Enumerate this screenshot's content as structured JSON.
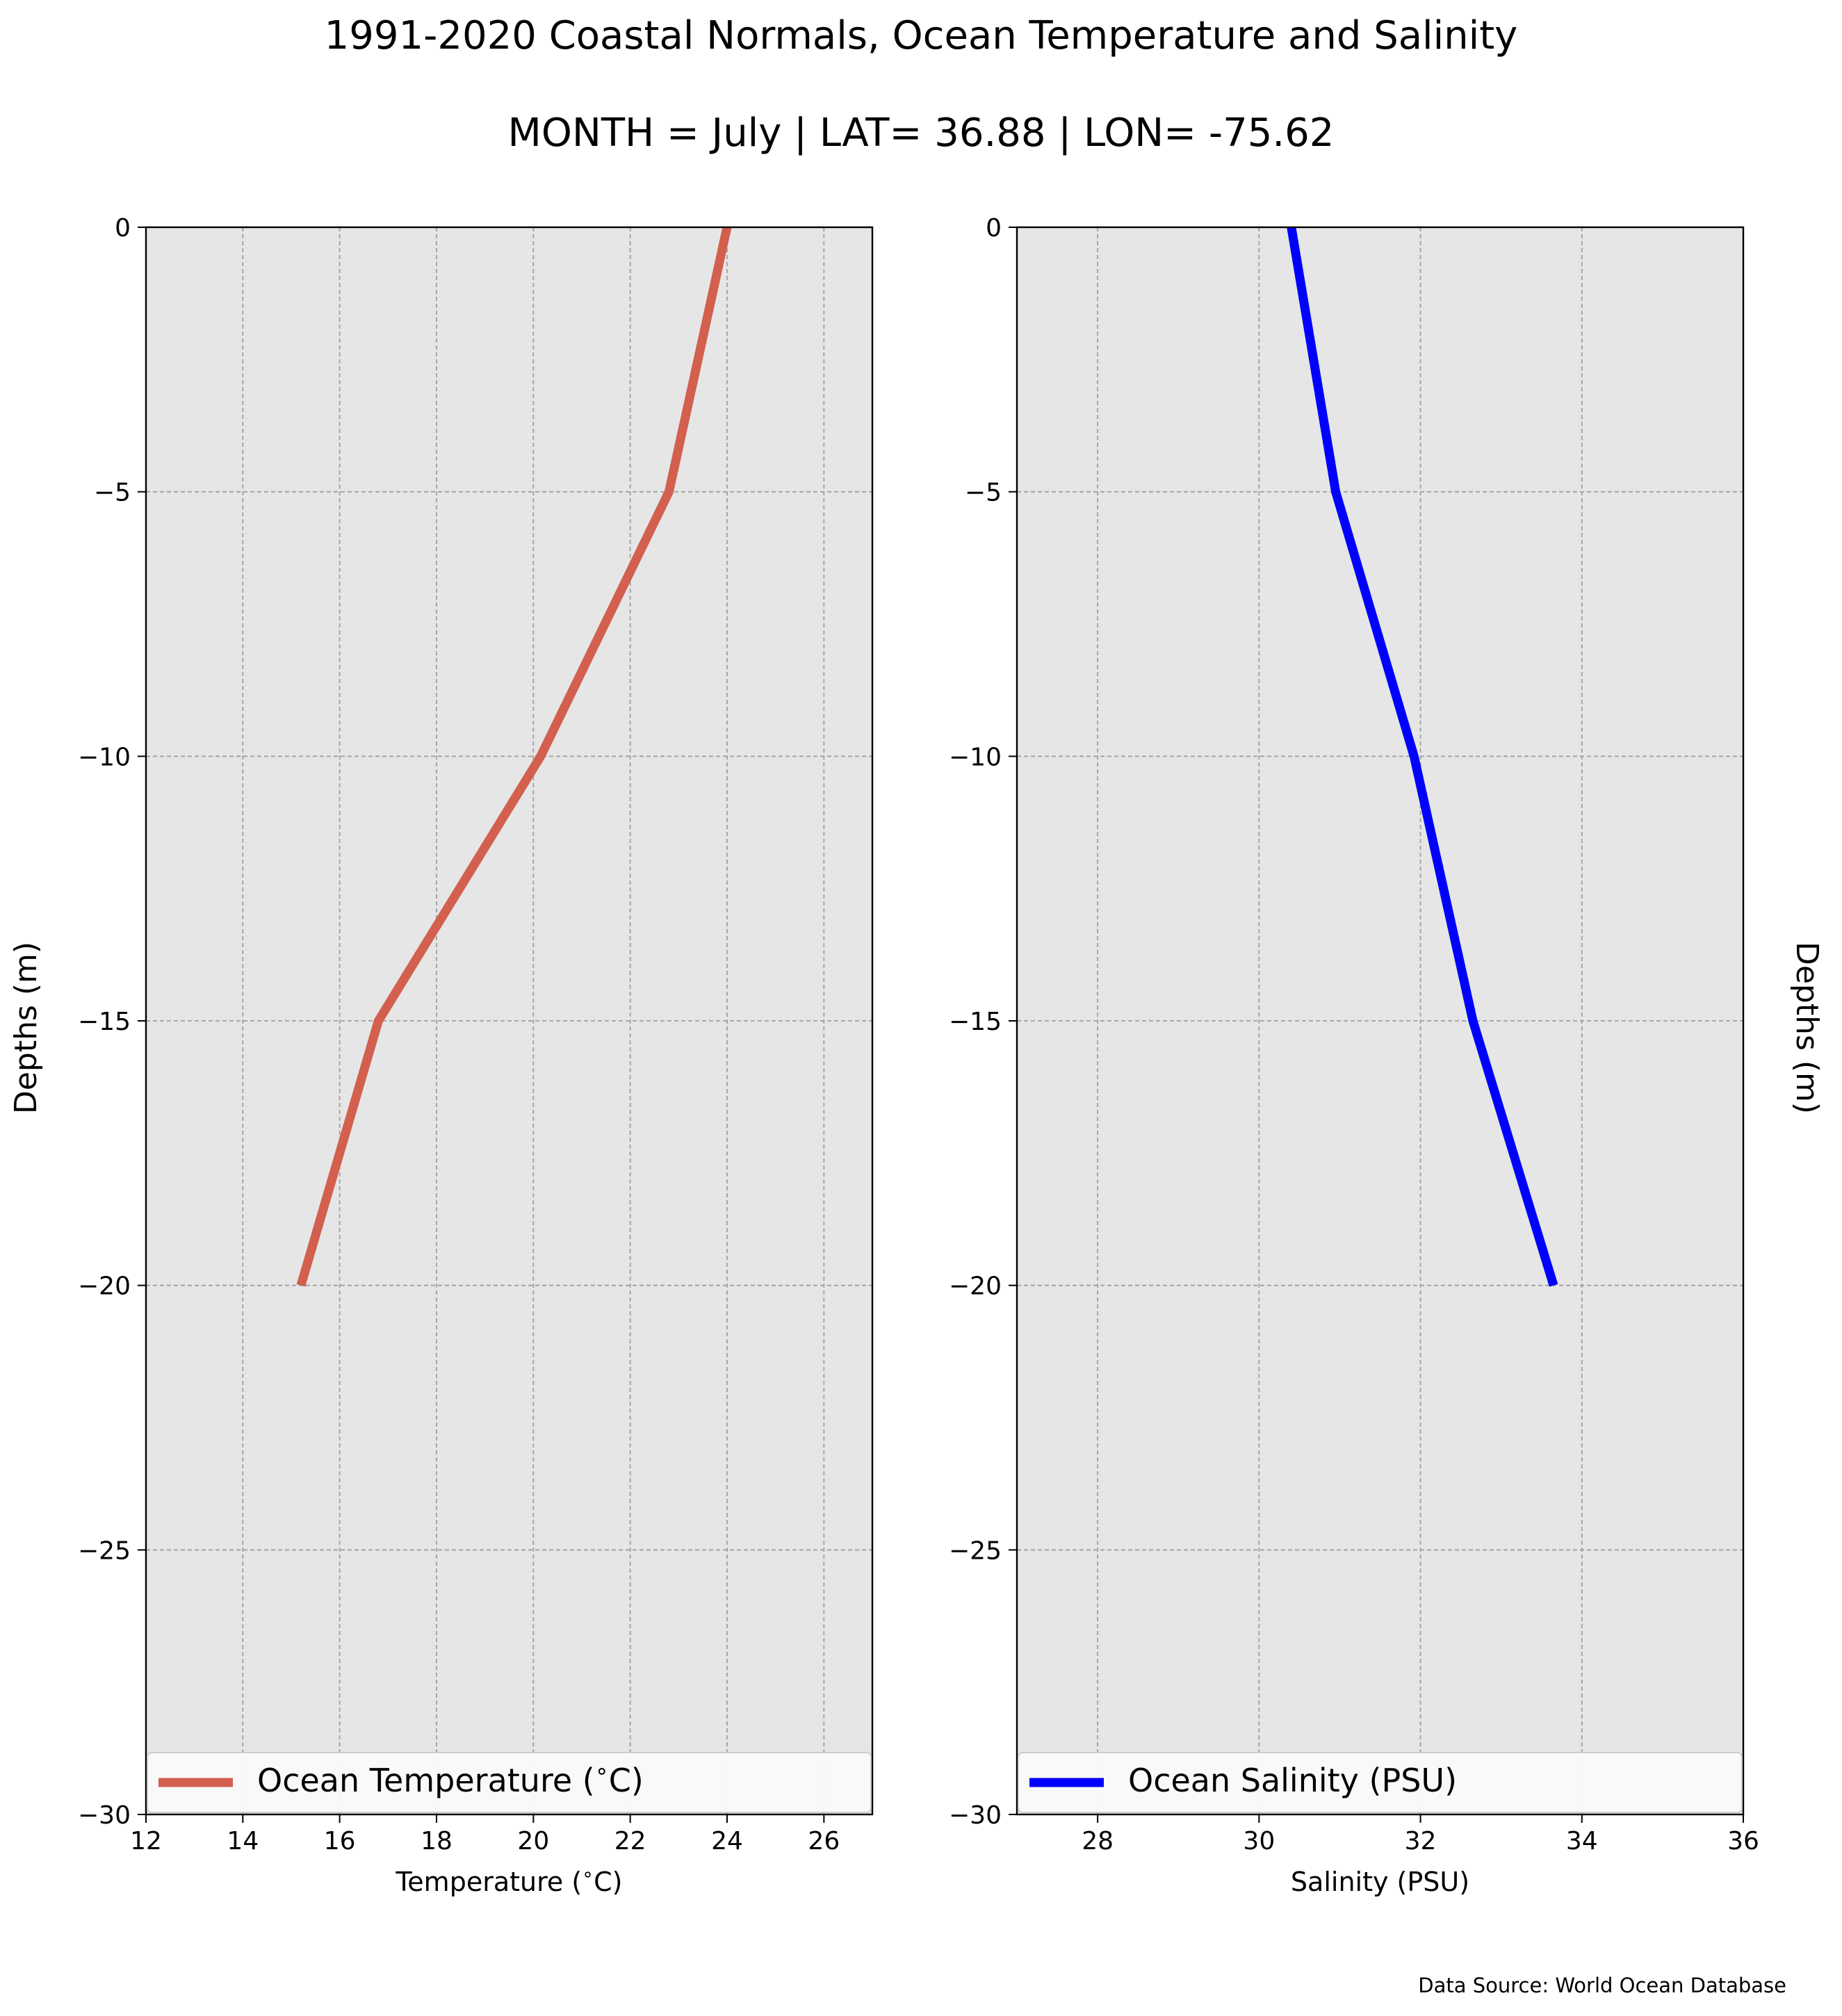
{
  "figure": {
    "title": "1991-2020 Coastal Normals, Ocean Temperature and Salinity",
    "subtitle": "MONTH = July | LAT= 36.88 | LON= -75.62",
    "footer": "Data Source: World Ocean Database"
  },
  "colors": {
    "plot_background": "#e6e6e6",
    "grid": "#a0a0a0",
    "temperature_line": "#d35f4e",
    "salinity_line": "#0000ff"
  },
  "chart_data": [
    {
      "type": "line",
      "name": "temperature-profile",
      "xlabel": "Temperature ($^\\circ$C)",
      "ylabel": "Depths (m)",
      "ylabel_side": "left",
      "xlim": [
        12,
        27
      ],
      "ylim": [
        -30,
        0
      ],
      "xticks": [
        12,
        14,
        16,
        18,
        20,
        22,
        24,
        26
      ],
      "xtick_labels": [
        "12",
        "14",
        "16",
        "18",
        "20",
        "22",
        "24",
        "26"
      ],
      "yticks": [
        0,
        -5,
        -10,
        -15,
        -20,
        -25,
        -30
      ],
      "ytick_labels": [
        "0",
        "−5",
        "−10",
        "−15",
        "−20",
        "−25",
        "−30"
      ],
      "grid": true,
      "legend_position": "bottom",
      "series": [
        {
          "name": "Ocean Temperature ($^\\circ$C)",
          "color": "#d35f4e",
          "x": [
            24.0,
            22.8,
            20.15,
            16.8,
            15.2
          ],
          "y": [
            0,
            -5,
            -10,
            -15,
            -20
          ]
        }
      ]
    },
    {
      "type": "line",
      "name": "salinity-profile",
      "xlabel": "Salinity (PSU)",
      "ylabel": "Depths (m)",
      "ylabel_side": "right",
      "xlim": [
        27,
        36
      ],
      "ylim": [
        -30,
        0
      ],
      "xticks": [
        28,
        30,
        32,
        34,
        36
      ],
      "xtick_labels": [
        "28",
        "30",
        "32",
        "34",
        "36"
      ],
      "yticks": [
        0,
        -5,
        -10,
        -15,
        -20,
        -25,
        -30
      ],
      "ytick_labels": [
        "0",
        "−5",
        "−10",
        "−15",
        "−20",
        "−25",
        "−30"
      ],
      "grid": true,
      "legend_position": "bottom",
      "series": [
        {
          "name": "Ocean Salinity (PSU)",
          "color": "#0000ff",
          "x": [
            30.4,
            30.95,
            31.92,
            32.65,
            33.65
          ],
          "y": [
            0,
            -5,
            -10,
            -15,
            -20
          ]
        }
      ]
    }
  ]
}
